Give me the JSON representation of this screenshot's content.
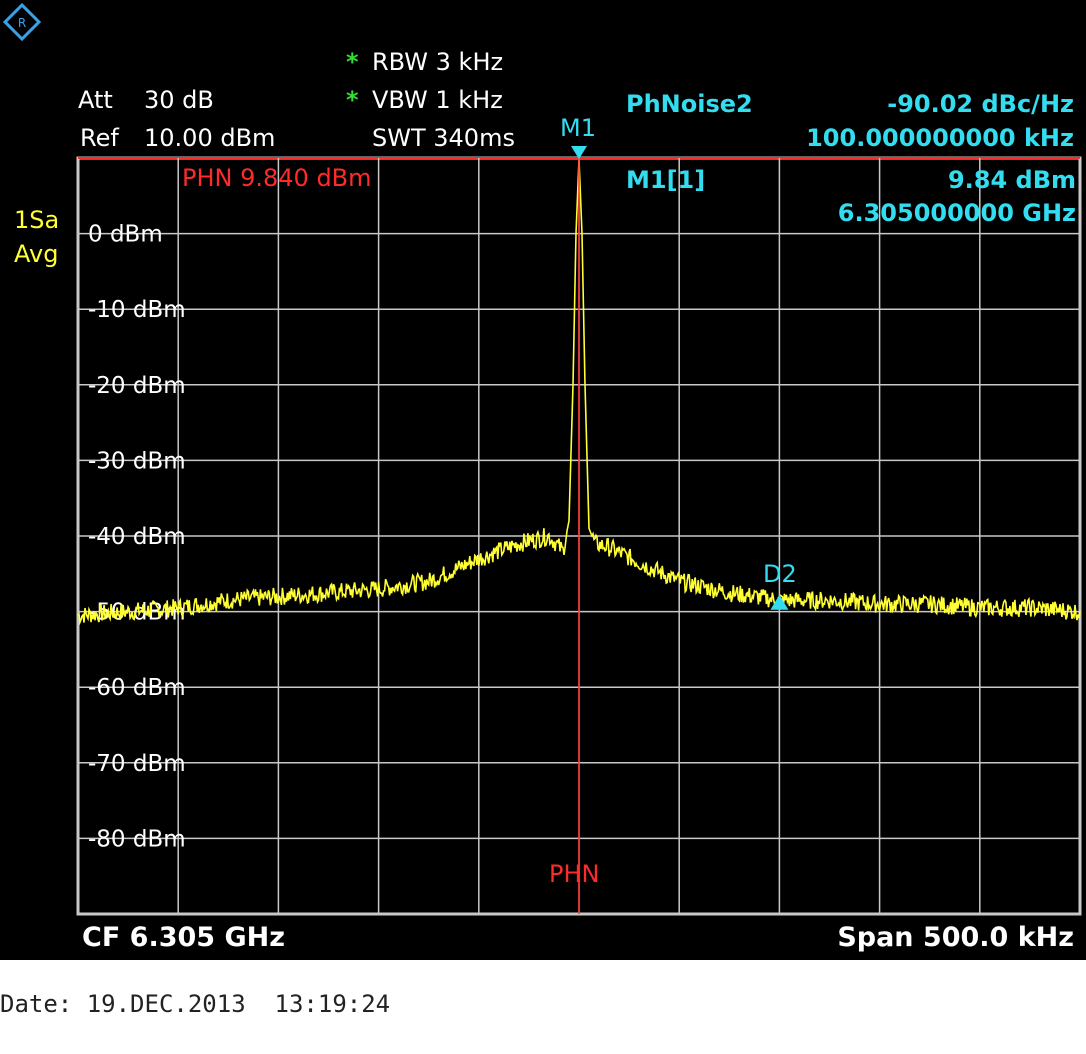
{
  "header": {
    "att_label": "Att",
    "att_value": "30 dB",
    "ref_label": "Ref",
    "ref_value": "10.00 dBm",
    "rbw_star": "*",
    "rbw": "RBW 3 kHz",
    "vbw_star": "*",
    "vbw": "VBW 1 kHz",
    "swt": "SWT 340ms"
  },
  "trace_mode": {
    "line1": "1Sa",
    "line2": "Avg"
  },
  "marker_info": {
    "phnoise_label": "PhNoise2",
    "phnoise_value": "-90.02 dBc/Hz",
    "phnoise_offset": "100.000000000 kHz",
    "m1_label": "M1[1]",
    "m1_level": "9.84 dBm",
    "m1_freq": "6.305000000 GHz",
    "m1_tag": "M1",
    "d2_tag": "D2",
    "phn_ref_label": "PHN  9.840 dBm",
    "phn_line_label": "PHN"
  },
  "footer": {
    "cf": "CF 6.305 GHz",
    "span": "Span 500.0 kHz",
    "date": "Date: 19.DEC.2013  13:19:24"
  },
  "colors": {
    "trace": "#ffff33",
    "marker": "#33ddf0",
    "phn_line": "#ff2a2a",
    "grid": "#c8c8c8"
  },
  "chart_data": {
    "type": "line",
    "xlabel": "",
    "ylabel": "",
    "x_unit": "kHz offset from CF",
    "xlim": [
      -250,
      250
    ],
    "ylim": [
      -90,
      10
    ],
    "y_tick_labels": [
      "0 dBm",
      "-10 dBm",
      "-20 dBm",
      "-30 dBm",
      "-40 dBm",
      "-50 dBm",
      "-60 dBm",
      "-70 dBm",
      "-80 dBm"
    ],
    "y_ticks": [
      0,
      -10,
      -20,
      -30,
      -40,
      -50,
      -60,
      -70,
      -80
    ],
    "grid": true,
    "series": [
      {
        "x": [
          -250,
          -225,
          -200,
          -175,
          -150,
          -125,
          -100,
          -75,
          -50,
          -30,
          -15,
          -8,
          -5,
          -3,
          -1.5,
          0,
          1.5,
          3,
          5,
          8,
          15,
          30,
          50,
          75,
          100,
          125,
          150,
          175,
          200,
          225,
          250
        ],
        "values": [
          -50.5,
          -50,
          -49.5,
          -48.5,
          -48,
          -47.5,
          -47,
          -46,
          -43,
          -41,
          -40,
          -42,
          -38,
          -20,
          0,
          9.8,
          0,
          -20,
          -39,
          -41,
          -41.5,
          -43.5,
          -46,
          -47.5,
          -48.5,
          -48.5,
          -49,
          -49,
          -49.5,
          -49.5,
          -50
        ]
      }
    ],
    "markers": [
      {
        "name": "M1",
        "x": 0,
        "y": 9.84
      },
      {
        "name": "D2",
        "x": 100,
        "y": -48.7
      }
    ],
    "reference_line": {
      "name": "PHN",
      "x": 0,
      "y": 9.84
    }
  }
}
